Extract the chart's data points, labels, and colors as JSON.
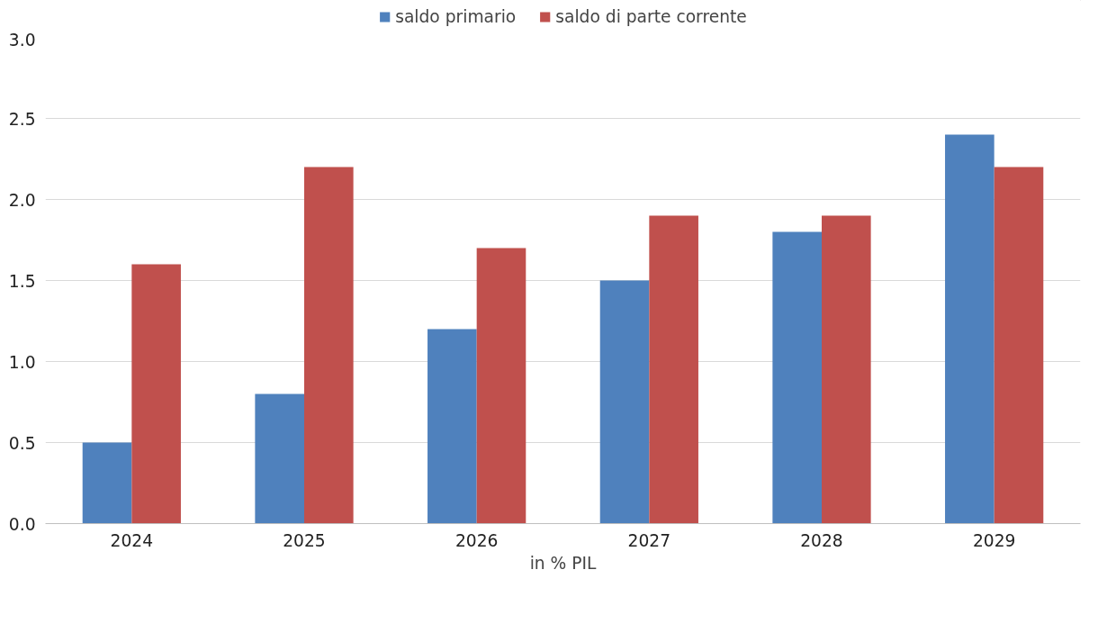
{
  "chart_data": {
    "type": "bar",
    "xlabel": "in % PIL",
    "categories": [
      "2024",
      "2025",
      "2026",
      "2027",
      "2028",
      "2029"
    ],
    "series": [
      {
        "name": "saldo primario",
        "color": "#4f81bd",
        "values": [
          0.5,
          0.8,
          1.2,
          1.5,
          1.8,
          2.4
        ]
      },
      {
        "name": "saldo di parte corrente",
        "color": "#c0504d",
        "values": [
          1.6,
          2.2,
          1.7,
          1.9,
          1.9,
          2.2
        ]
      }
    ],
    "ylim": [
      0,
      3
    ],
    "yticks": [
      {
        "value": 0,
        "label": "0.0"
      },
      {
        "value": 0.5,
        "label": "0.5"
      },
      {
        "value": 1,
        "label": "1.0"
      },
      {
        "value": 1.5,
        "label": "1.5"
      },
      {
        "value": 2,
        "label": "2.0"
      },
      {
        "value": 2.5,
        "label": "2.5"
      },
      {
        "value": 3,
        "label": "3.0"
      }
    ],
    "grid": "y",
    "legend": "top"
  }
}
